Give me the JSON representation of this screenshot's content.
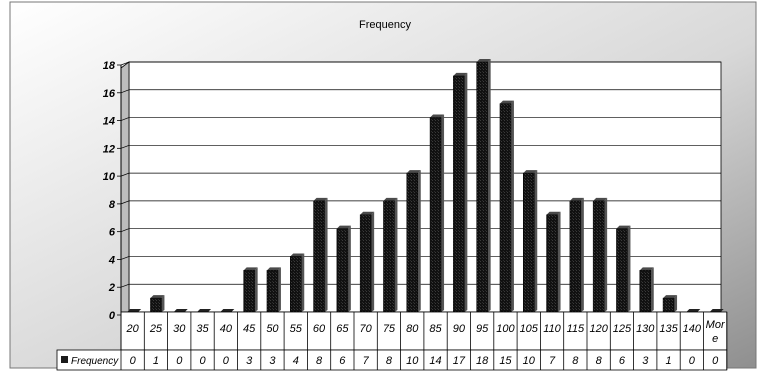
{
  "chart_data": {
    "type": "bar",
    "title": "Frequency",
    "xlabel": "",
    "ylabel": "",
    "ylim": [
      0,
      18
    ],
    "y_ticks": [
      0,
      2,
      4,
      6,
      8,
      10,
      12,
      14,
      16,
      18
    ],
    "grid": true,
    "categories": [
      "20",
      "25",
      "30",
      "35",
      "40",
      "45",
      "50",
      "55",
      "60",
      "65",
      "70",
      "75",
      "80",
      "85",
      "90",
      "95",
      "100",
      "105",
      "110",
      "115",
      "120",
      "125",
      "130",
      "135",
      "140",
      "More"
    ],
    "series": [
      {
        "name": "Frequency",
        "values": [
          0,
          1,
          0,
          0,
          0,
          3,
          3,
          4,
          8,
          6,
          7,
          8,
          10,
          14,
          17,
          18,
          15,
          10,
          7,
          8,
          8,
          6,
          3,
          1,
          0,
          0
        ]
      }
    ],
    "data_table": true,
    "colors": {
      "bar": "#1a1a1a",
      "background_light": "#ffffff",
      "background_dark": "#8f8f8f",
      "plot_background": "#ffffff",
      "grid": "#000000"
    }
  }
}
